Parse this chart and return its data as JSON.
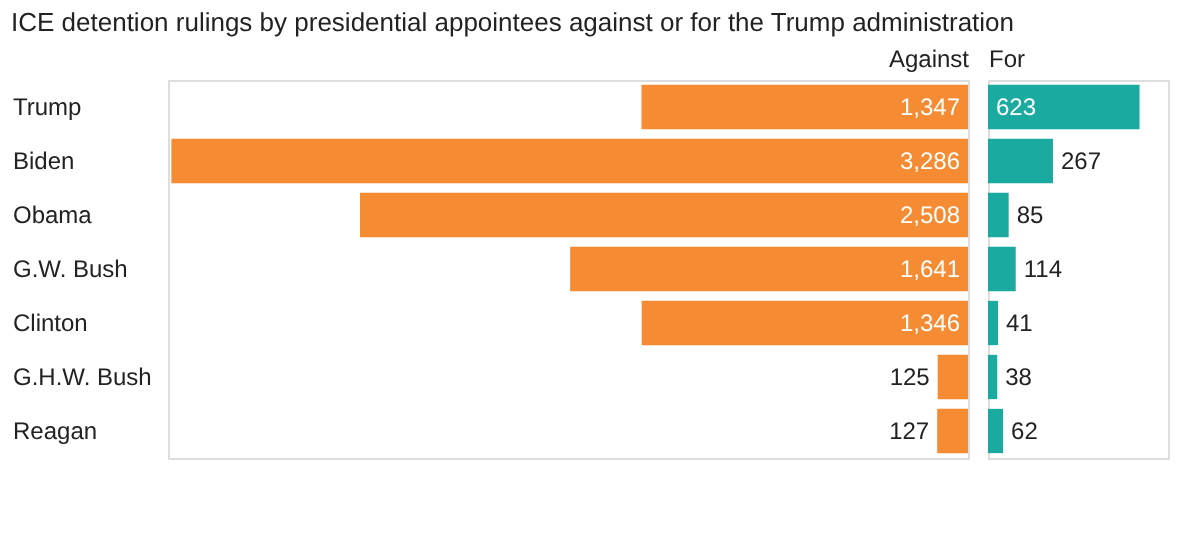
{
  "chart_data": [
    {
      "type": "bar",
      "title": "ICE detention rulings by presidential appointees against or for the Trump administration",
      "xlabel": "Against",
      "orientation": "horizontal",
      "categories": [
        "Trump",
        "Biden",
        "Obama",
        "G.W. Bush",
        "Clinton",
        "G.H.W. Bush",
        "Reagan"
      ],
      "series": [
        {
          "color": "#f58b32",
          "values": [
            1347,
            3286,
            2508,
            1641,
            1346,
            125,
            127
          ],
          "value_labels": [
            "1,347",
            "3,286",
            "2,508",
            "1,641",
            "1,346",
            "125",
            "127"
          ]
        }
      ],
      "xlim": [
        3300,
        0
      ],
      "tick_labels": "y"
    },
    {
      "type": "bar",
      "xlabel": "For",
      "orientation": "horizontal",
      "categories": [
        null,
        null,
        null,
        null,
        null,
        null,
        null
      ],
      "series": [
        {
          "color": "#1aaaa0",
          "values": [
            623,
            267,
            85,
            114,
            41,
            38,
            62
          ]
        }
      ],
      "xlim": [
        0,
        740
      ],
      "data_labels": true,
      "tick_labels": false
    }
  ]
}
